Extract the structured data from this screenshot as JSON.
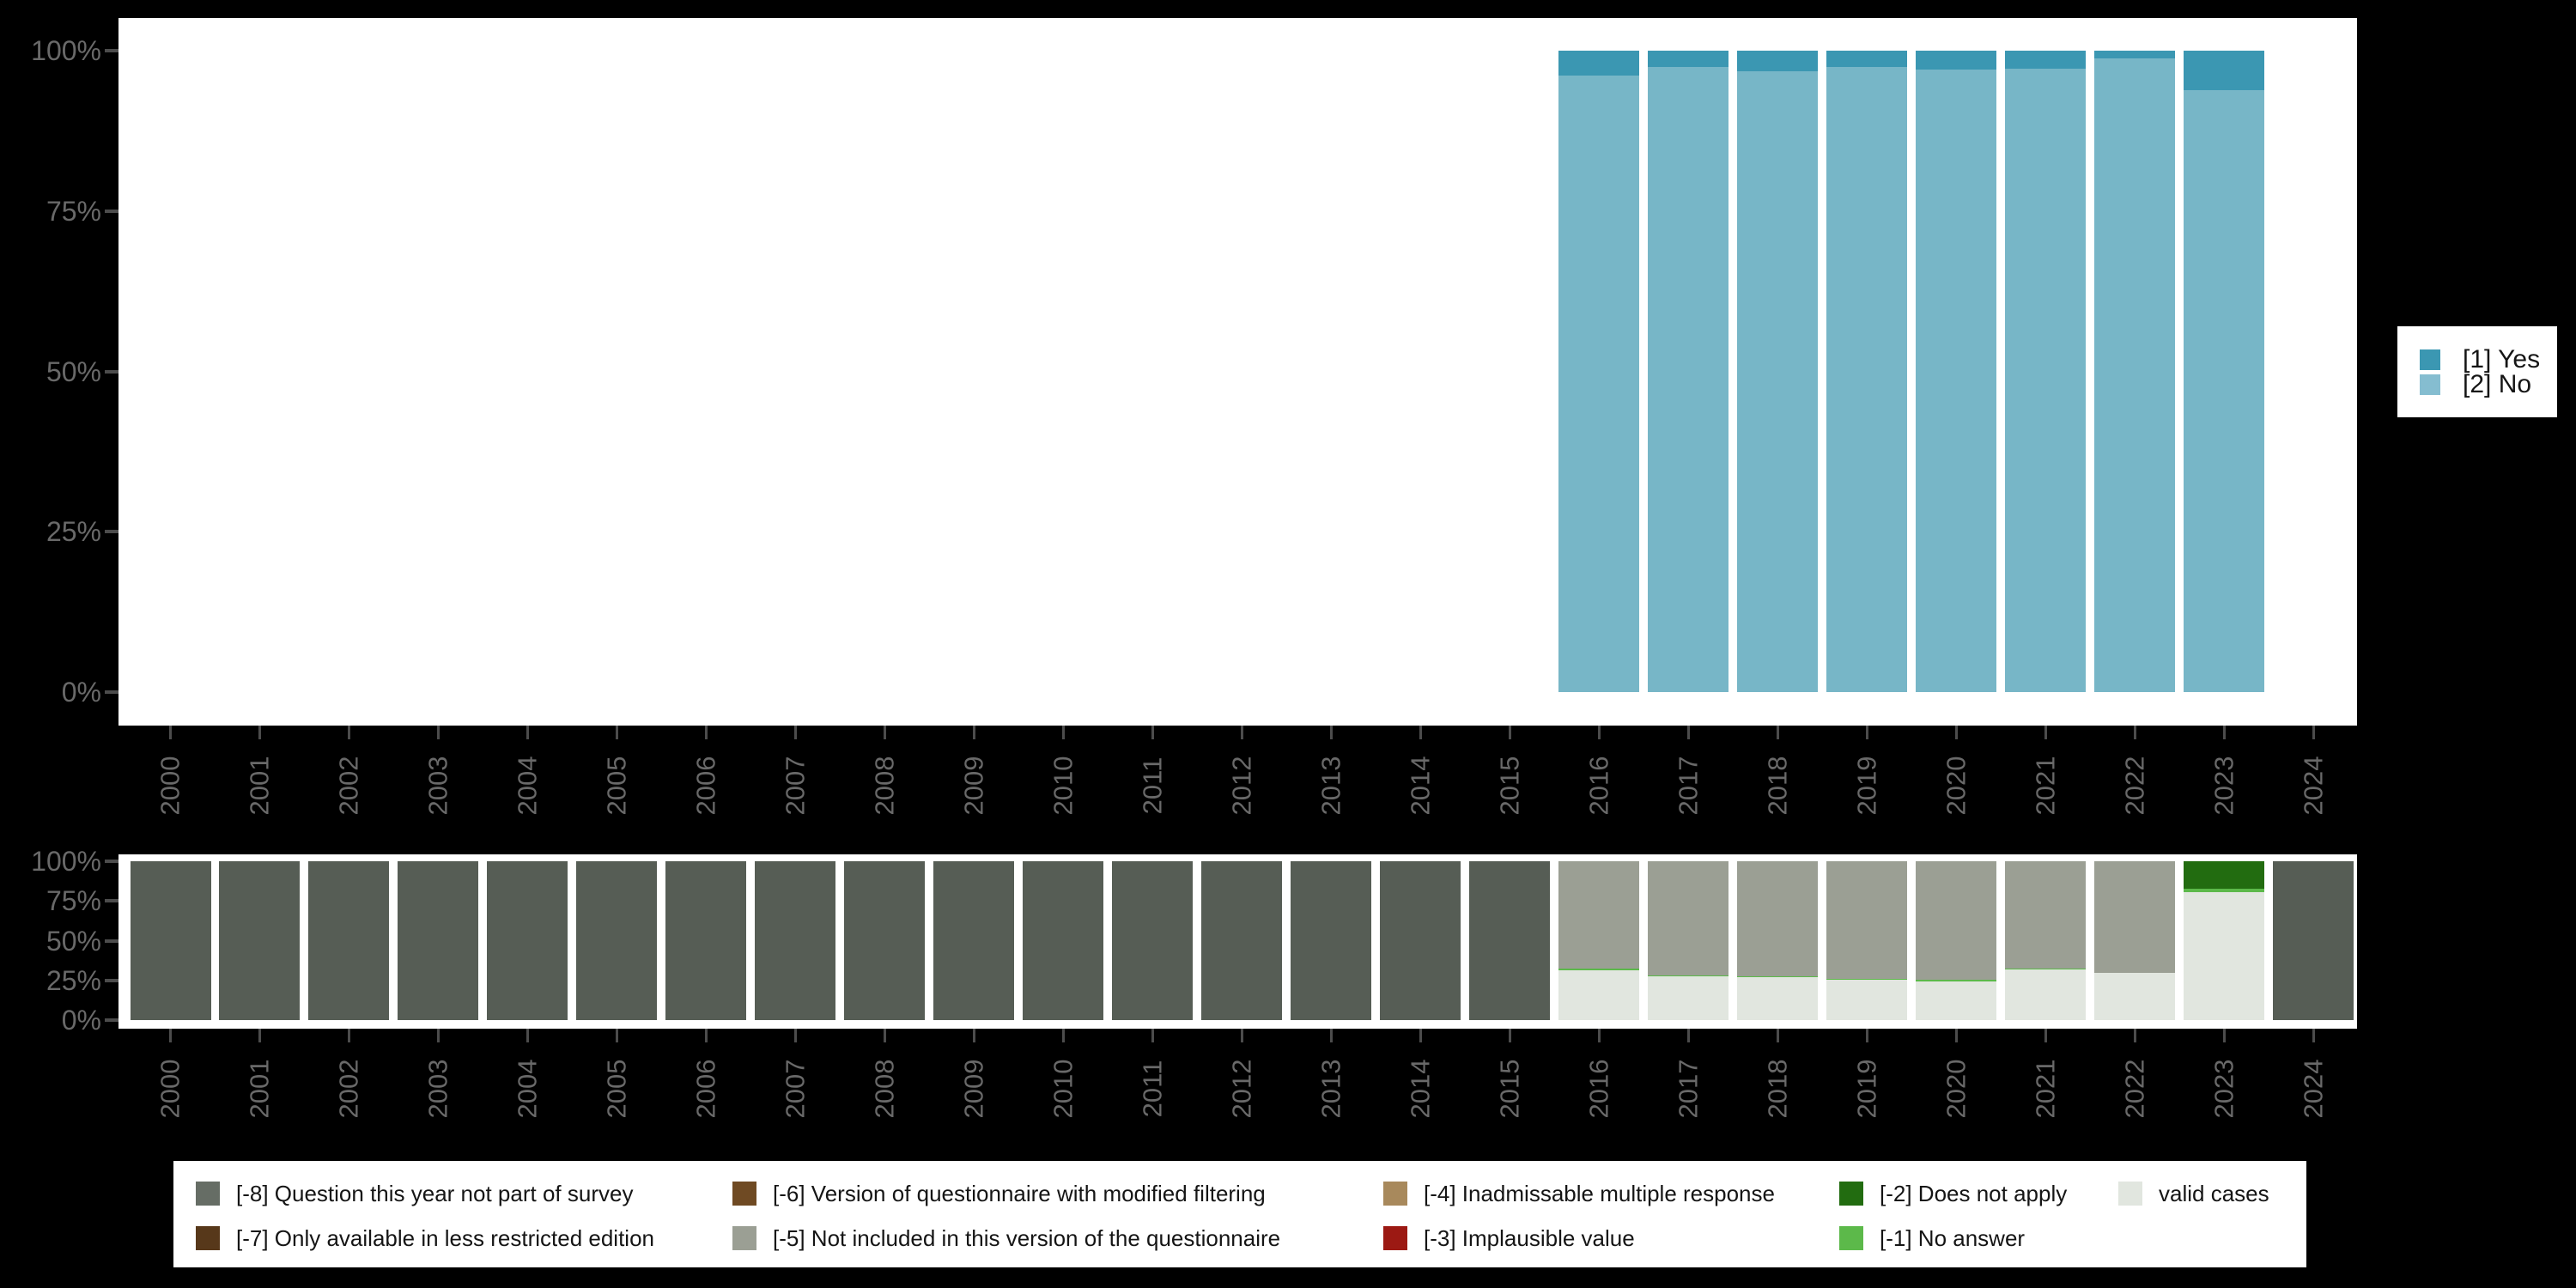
{
  "colors": {
    "background": "#000000",
    "plot_background": "#ffffff",
    "axis_tick": "#4c4c4c",
    "axis_label": "#696969",
    "legend_text": "#151515",
    "legend_background": "#ffffff"
  },
  "years": [
    "2000",
    "2001",
    "2002",
    "2003",
    "2004",
    "2005",
    "2006",
    "2007",
    "2008",
    "2009",
    "2010",
    "2011",
    "2012",
    "2013",
    "2014",
    "2015",
    "2016",
    "2017",
    "2018",
    "2019",
    "2020",
    "2021",
    "2022",
    "2023",
    "2024"
  ],
  "y_axis_ticks": [
    "100%",
    "75%",
    "50%",
    "25%",
    "0%"
  ],
  "legend_right": {
    "items": [
      {
        "code": "1",
        "label": "[1] Yes",
        "color": "#3b97b2"
      },
      {
        "code": "2",
        "label": "[2] No",
        "color": "#85bdd0"
      }
    ]
  },
  "legend_bottom": {
    "items": [
      {
        "code": "-8",
        "label": "[-8] Question this year not part of survey",
        "color": "#666d65",
        "col": 0,
        "row": 0
      },
      {
        "code": "-7",
        "label": "[-7] Only available in less restricted edition",
        "color": "#57381a",
        "col": 0,
        "row": 1
      },
      {
        "code": "-6",
        "label": "[-6] Version of questionnaire with modified filtering",
        "color": "#6f4a23",
        "col": 1,
        "row": 0
      },
      {
        "code": "-5",
        "label": "[-5] Not included in this version of the questionnaire",
        "color": "#9b9f94",
        "col": 1,
        "row": 1
      },
      {
        "code": "-4",
        "label": "[-4] Inadmissable multiple response",
        "color": "#a8895c",
        "col": 2,
        "row": 0
      },
      {
        "code": "-3",
        "label": "[-3] Implausible value",
        "color": "#9c1913",
        "col": 2,
        "row": 1
      },
      {
        "code": "-2",
        "label": "[-2] Does not apply",
        "color": "#226c10",
        "col": 3,
        "row": 0
      },
      {
        "code": "-1",
        "label": "[-1] No answer",
        "color": "#5cb94a",
        "col": 3,
        "row": 1
      },
      {
        "code": "valid",
        "label": "valid cases",
        "color": "#e1e6df",
        "col": 4,
        "row": 0
      }
    ]
  },
  "chart_data": [
    {
      "type": "bar",
      "stacked": true,
      "title": "",
      "xlabel": "",
      "ylabel": "",
      "categories": [
        "2000",
        "2001",
        "2002",
        "2003",
        "2004",
        "2005",
        "2006",
        "2007",
        "2008",
        "2009",
        "2010",
        "2011",
        "2012",
        "2013",
        "2014",
        "2015",
        "2016",
        "2017",
        "2018",
        "2019",
        "2020",
        "2021",
        "2022",
        "2023",
        "2024"
      ],
      "ylim": [
        0,
        100
      ],
      "ytick_labels": [
        "0%",
        "25%",
        "50%",
        "75%",
        "100%"
      ],
      "grid": false,
      "legend_position": "right",
      "series": [
        {
          "name": "[1] Yes",
          "color": "#3b97b2",
          "values": [
            null,
            null,
            null,
            null,
            null,
            null,
            null,
            null,
            null,
            null,
            null,
            null,
            null,
            null,
            null,
            null,
            3.9,
            2.5,
            3.2,
            2.5,
            2.9,
            2.8,
            1.2,
            6.2,
            null
          ]
        },
        {
          "name": "[2] No",
          "color": "#77b6c7",
          "values": [
            null,
            null,
            null,
            null,
            null,
            null,
            null,
            null,
            null,
            null,
            null,
            null,
            null,
            null,
            null,
            null,
            96.1,
            97.5,
            96.8,
            97.5,
            97.1,
            97.2,
            98.8,
            93.8,
            null
          ]
        }
      ]
    },
    {
      "type": "bar",
      "stacked": true,
      "title": "",
      "xlabel": "",
      "ylabel": "",
      "categories": [
        "2000",
        "2001",
        "2002",
        "2003",
        "2004",
        "2005",
        "2006",
        "2007",
        "2008",
        "2009",
        "2010",
        "2011",
        "2012",
        "2013",
        "2014",
        "2015",
        "2016",
        "2017",
        "2018",
        "2019",
        "2020",
        "2021",
        "2022",
        "2023",
        "2024"
      ],
      "ylim": [
        0,
        100
      ],
      "ytick_labels": [
        "0%",
        "25%",
        "50%",
        "75%",
        "100%"
      ],
      "grid": false,
      "legend_position": "bottom",
      "series": [
        {
          "name": "[-8] Question this year not part of survey",
          "color": "#565d55",
          "values": [
            100,
            100,
            100,
            100,
            100,
            100,
            100,
            100,
            100,
            100,
            100,
            100,
            100,
            100,
            100,
            100,
            0,
            0,
            0,
            0,
            0,
            0,
            0,
            0,
            100
          ]
        },
        {
          "name": "[-5] Not included in this version of the questionnaire",
          "color": "#9b9f94",
          "values": [
            0,
            0,
            0,
            0,
            0,
            0,
            0,
            0,
            0,
            0,
            0,
            0,
            0,
            0,
            0,
            0,
            67.7,
            71.8,
            72.4,
            74.1,
            74.5,
            67.6,
            70.3,
            0,
            0
          ]
        },
        {
          "name": "[-2] Does not apply",
          "color": "#226c10",
          "values": [
            0,
            0,
            0,
            0,
            0,
            0,
            0,
            0,
            0,
            0,
            0,
            0,
            0,
            0,
            0,
            0,
            0,
            0,
            0,
            0,
            0,
            0,
            0,
            17.3,
            0
          ]
        },
        {
          "name": "[-1] No answer",
          "color": "#5cb94a",
          "values": [
            0,
            0,
            0,
            0,
            0,
            0,
            0,
            0,
            0,
            0,
            0,
            0,
            0,
            0,
            0,
            0,
            0.9,
            0.7,
            0.7,
            0.6,
            1.3,
            0.6,
            0,
            1.9,
            0
          ]
        },
        {
          "name": "valid cases",
          "color": "#e1e6df",
          "values": [
            0,
            0,
            0,
            0,
            0,
            0,
            0,
            0,
            0,
            0,
            0,
            0,
            0,
            0,
            0,
            0,
            31.4,
            27.5,
            26.9,
            25.3,
            24.2,
            31.8,
            29.7,
            80.8,
            0
          ]
        }
      ]
    }
  ]
}
